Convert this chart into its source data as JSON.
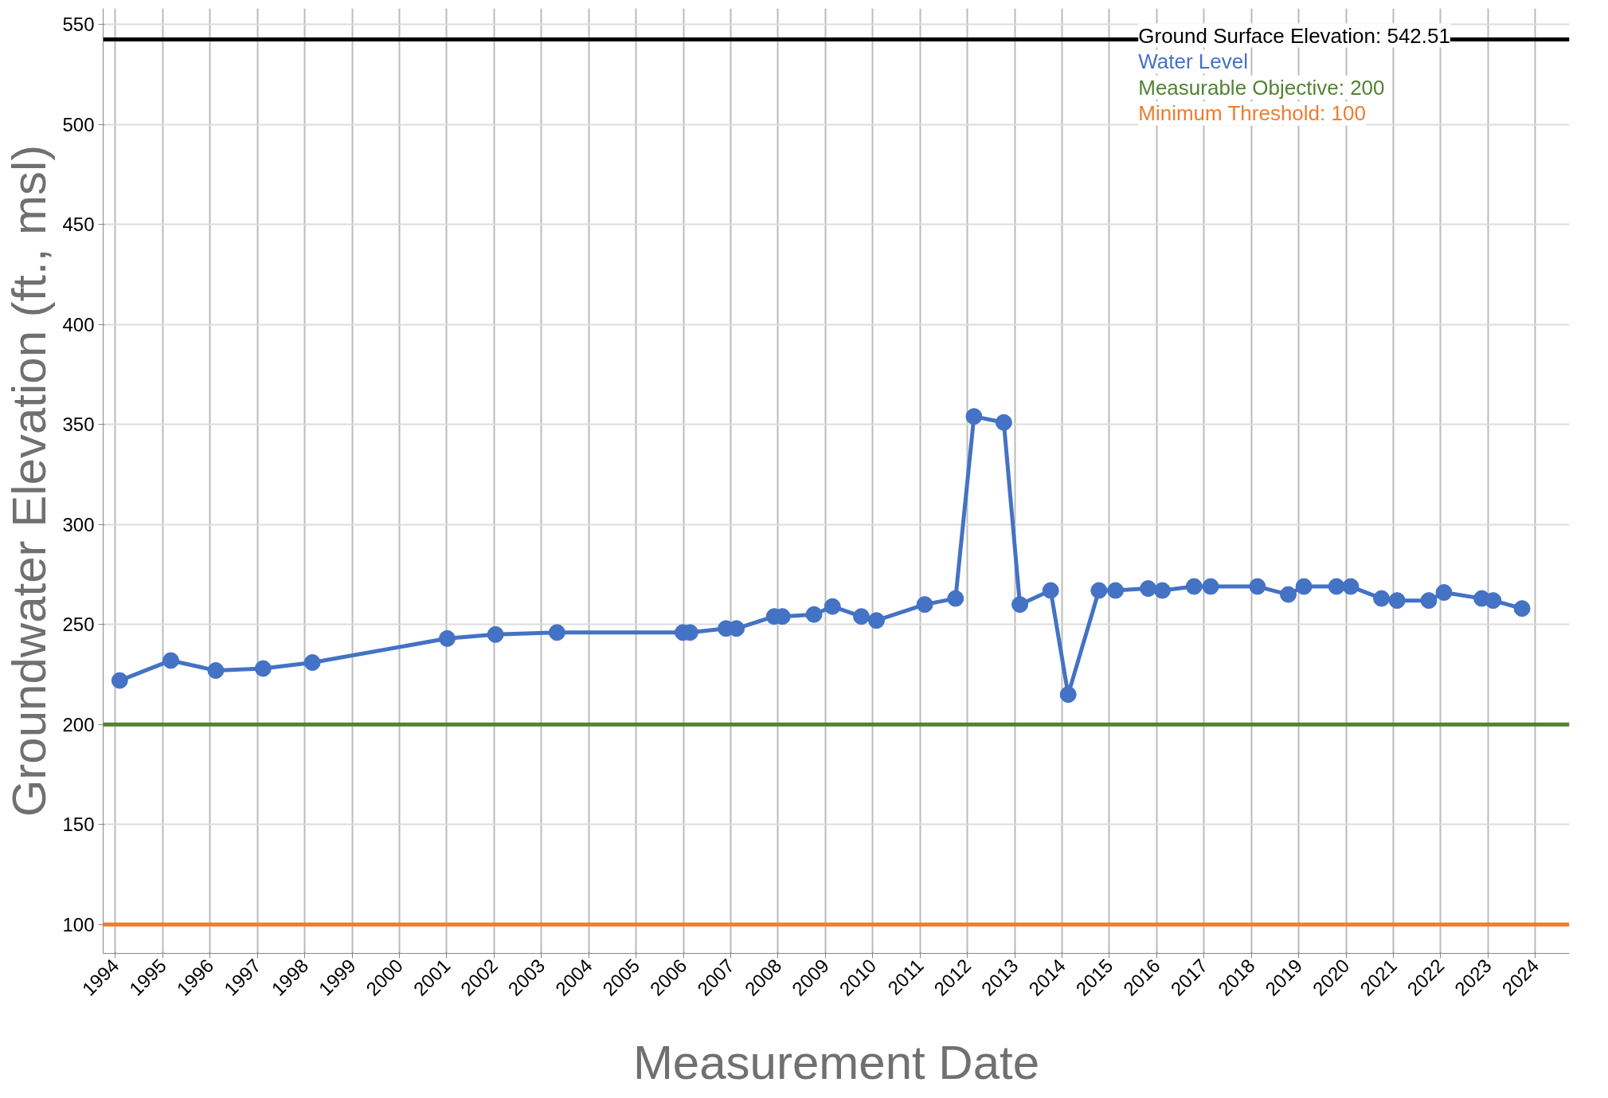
{
  "chart_data": {
    "type": "line",
    "xlabel": "Measurement Date",
    "ylabel": "Groundwater Elevation (ft., msl)",
    "xlim": [
      1993.74,
      2024.72
    ],
    "xticks": [
      1994,
      1995,
      1996,
      1997,
      1998,
      1999,
      2000,
      2001,
      2002,
      2003,
      2004,
      2005,
      2006,
      2007,
      2008,
      2009,
      2010,
      2011,
      2012,
      2013,
      2014,
      2015,
      2016,
      2017,
      2018,
      2019,
      2020,
      2021,
      2022,
      2023,
      2024
    ],
    "ylim": [
      85.6,
      558
    ],
    "yticks": [
      100,
      150,
      200,
      250,
      300,
      350,
      400,
      450,
      500,
      550
    ],
    "grid": true,
    "marker": "circle",
    "line_style": "solid",
    "x": [
      1994.09,
      1995.17,
      1996.12,
      1997.12,
      1998.16,
      2001.01,
      2002.03,
      2003.33,
      2005.99,
      2006.14,
      2006.9,
      2007.12,
      2007.92,
      2008.09,
      2008.76,
      2009.15,
      2009.76,
      2010.08,
      2011.1,
      2011.75,
      2012.14,
      2012.77,
      2013.11,
      2013.76,
      2014.13,
      2014.78,
      2015.13,
      2015.82,
      2016.12,
      2016.79,
      2017.14,
      2018.13,
      2018.78,
      2019.11,
      2019.8,
      2020.1,
      2020.75,
      2021.08,
      2021.75,
      2022.07,
      2022.87,
      2023.11,
      2023.72
    ],
    "series": [
      {
        "name": "Water Level",
        "color": "#4472c4",
        "values": [
          222,
          232,
          227,
          228,
          231,
          243,
          245,
          246,
          246,
          246,
          248,
          248,
          254,
          254,
          255,
          259,
          254,
          252,
          260,
          263,
          354,
          351,
          260,
          267,
          215,
          267,
          267,
          268,
          267,
          269,
          269,
          269,
          265,
          269,
          269,
          269,
          263,
          262,
          262,
          266,
          263,
          262,
          258
        ]
      }
    ],
    "ref_lines": [
      {
        "axis": "y",
        "value": 542.51,
        "label": "Ground Surface Elevation: 542.51",
        "color": "#000000"
      },
      {
        "axis": "y",
        "value": 200,
        "label": "Measurable Objective: 200",
        "color": "#548235"
      },
      {
        "axis": "y",
        "value": 100,
        "label": "Minimum Threshold: 100",
        "color": "#ed7d31"
      }
    ]
  }
}
